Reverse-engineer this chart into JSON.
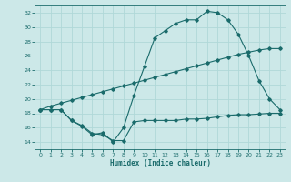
{
  "title": "",
  "xlabel": "Humidex (Indice chaleur)",
  "background_color": "#cce8e8",
  "line_color": "#1a6b6b",
  "grid_color": "#b0d8d8",
  "xlim": [
    -0.5,
    23.5
  ],
  "ylim": [
    13,
    33
  ],
  "yticks": [
    14,
    16,
    18,
    20,
    22,
    24,
    26,
    28,
    30,
    32
  ],
  "xticks": [
    0,
    1,
    2,
    3,
    4,
    5,
    6,
    7,
    8,
    9,
    10,
    11,
    12,
    13,
    14,
    15,
    16,
    17,
    18,
    19,
    20,
    21,
    22,
    23
  ],
  "series1_x": [
    0,
    1,
    2,
    3,
    4,
    5,
    6,
    7,
    8,
    9,
    10,
    11,
    12,
    13,
    14,
    15,
    16,
    17,
    18,
    19,
    20,
    21,
    22,
    23
  ],
  "series1_y": [
    18.5,
    18.5,
    18.5,
    17.0,
    16.2,
    15.0,
    15.3,
    14.0,
    16.0,
    20.5,
    24.5,
    28.5,
    29.5,
    30.5,
    31.0,
    31.0,
    32.2,
    32.0,
    31.0,
    29.0,
    26.0,
    22.5,
    20.0,
    18.5
  ],
  "series2_x": [
    0,
    1,
    2,
    3,
    4,
    5,
    6,
    7,
    8,
    9,
    10,
    11,
    12,
    13,
    14,
    15,
    16,
    17,
    18,
    19,
    20,
    21,
    22,
    23
  ],
  "series2_y": [
    18.5,
    19.0,
    19.4,
    19.8,
    20.2,
    20.6,
    21.0,
    21.4,
    21.8,
    22.2,
    22.6,
    23.0,
    23.4,
    23.8,
    24.2,
    24.6,
    25.0,
    25.4,
    25.8,
    26.2,
    26.5,
    26.8,
    27.0,
    27.0
  ],
  "series3_x": [
    0,
    1,
    2,
    3,
    4,
    5,
    6,
    7,
    8,
    9,
    10,
    11,
    12,
    13,
    14,
    15,
    16,
    17,
    18,
    19,
    20,
    21,
    22,
    23
  ],
  "series3_y": [
    18.5,
    18.5,
    18.5,
    17.0,
    16.3,
    15.2,
    15.0,
    14.2,
    14.2,
    16.8,
    17.0,
    17.0,
    17.0,
    17.0,
    17.2,
    17.2,
    17.3,
    17.5,
    17.7,
    17.8,
    17.8,
    17.9,
    18.0,
    18.0
  ]
}
